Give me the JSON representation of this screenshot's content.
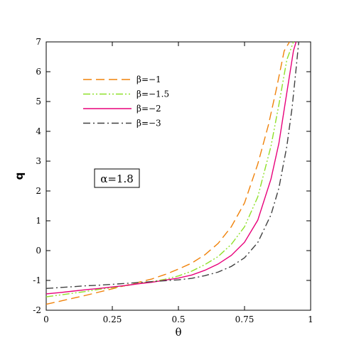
{
  "chart_data": {
    "type": "line",
    "xlabel": "θ",
    "ylabel": "q",
    "xlim": [
      0,
      1
    ],
    "ylim": [
      -2,
      7
    ],
    "xticks": [
      0,
      0.25,
      0.5,
      0.75,
      1
    ],
    "xtick_labels": [
      "0",
      "0.25",
      "0.5",
      "0.75",
      "1"
    ],
    "yticks": [
      -2,
      -1,
      0,
      1,
      2,
      3,
      4,
      5,
      6,
      7
    ],
    "ytick_labels": [
      "-2",
      "-1",
      "0",
      "1",
      "2",
      "3",
      "4",
      "5",
      "6",
      "7"
    ],
    "grid": false,
    "legend_position": "top-left",
    "annotation": "α=1.8",
    "series": [
      {
        "name": "β=−1",
        "color": "#f0820a",
        "dash": "dashed",
        "x": [
          0,
          0.05,
          0.1,
          0.15,
          0.2,
          0.25,
          0.3,
          0.35,
          0.4,
          0.45,
          0.5,
          0.55,
          0.6,
          0.65,
          0.7,
          0.75,
          0.8,
          0.84,
          0.87,
          0.9,
          0.92
        ],
        "y": [
          -1.8,
          -1.7,
          -1.6,
          -1.5,
          -1.39,
          -1.28,
          -1.17,
          -1.06,
          -0.95,
          -0.8,
          -0.62,
          -0.42,
          -0.14,
          0.24,
          0.8,
          1.6,
          2.9,
          4.2,
          5.4,
          6.7,
          7.0
        ]
      },
      {
        "name": "β=−1.5",
        "color": "#8ee028",
        "dash": "dashdotdot",
        "x": [
          0,
          0.05,
          0.1,
          0.15,
          0.2,
          0.25,
          0.3,
          0.35,
          0.4,
          0.45,
          0.5,
          0.55,
          0.6,
          0.65,
          0.7,
          0.75,
          0.8,
          0.85,
          0.88,
          0.91,
          0.935
        ],
        "y": [
          -1.55,
          -1.49,
          -1.43,
          -1.37,
          -1.3,
          -1.24,
          -1.18,
          -1.1,
          -1.04,
          -0.96,
          -0.85,
          -0.69,
          -0.47,
          -0.2,
          0.21,
          0.8,
          1.8,
          3.5,
          4.9,
          6.4,
          7.0
        ]
      },
      {
        "name": "β=−2",
        "color": "#e8007a",
        "dash": "solid",
        "x": [
          0,
          0.05,
          0.1,
          0.15,
          0.2,
          0.25,
          0.3,
          0.35,
          0.4,
          0.45,
          0.5,
          0.55,
          0.6,
          0.65,
          0.7,
          0.75,
          0.8,
          0.85,
          0.88,
          0.91,
          0.935,
          0.945
        ],
        "y": [
          -1.45,
          -1.41,
          -1.36,
          -1.31,
          -1.27,
          -1.22,
          -1.17,
          -1.11,
          -1.06,
          -0.99,
          -0.92,
          -0.82,
          -0.66,
          -0.45,
          -0.16,
          0.28,
          1.02,
          2.4,
          3.6,
          5.3,
          6.7,
          7.0
        ]
      },
      {
        "name": "β=−3",
        "color": "#404040",
        "dash": "dashdot",
        "x": [
          0,
          0.05,
          0.1,
          0.15,
          0.2,
          0.25,
          0.3,
          0.35,
          0.4,
          0.45,
          0.5,
          0.55,
          0.6,
          0.65,
          0.7,
          0.75,
          0.8,
          0.85,
          0.88,
          0.91,
          0.93,
          0.945,
          0.955
        ],
        "y": [
          -1.27,
          -1.24,
          -1.21,
          -1.18,
          -1.16,
          -1.13,
          -1.1,
          -1.07,
          -1.04,
          -1.01,
          -0.98,
          -0.93,
          -0.84,
          -0.72,
          -0.53,
          -0.24,
          0.27,
          1.2,
          2.1,
          3.5,
          4.8,
          6.1,
          7.0
        ]
      }
    ]
  }
}
